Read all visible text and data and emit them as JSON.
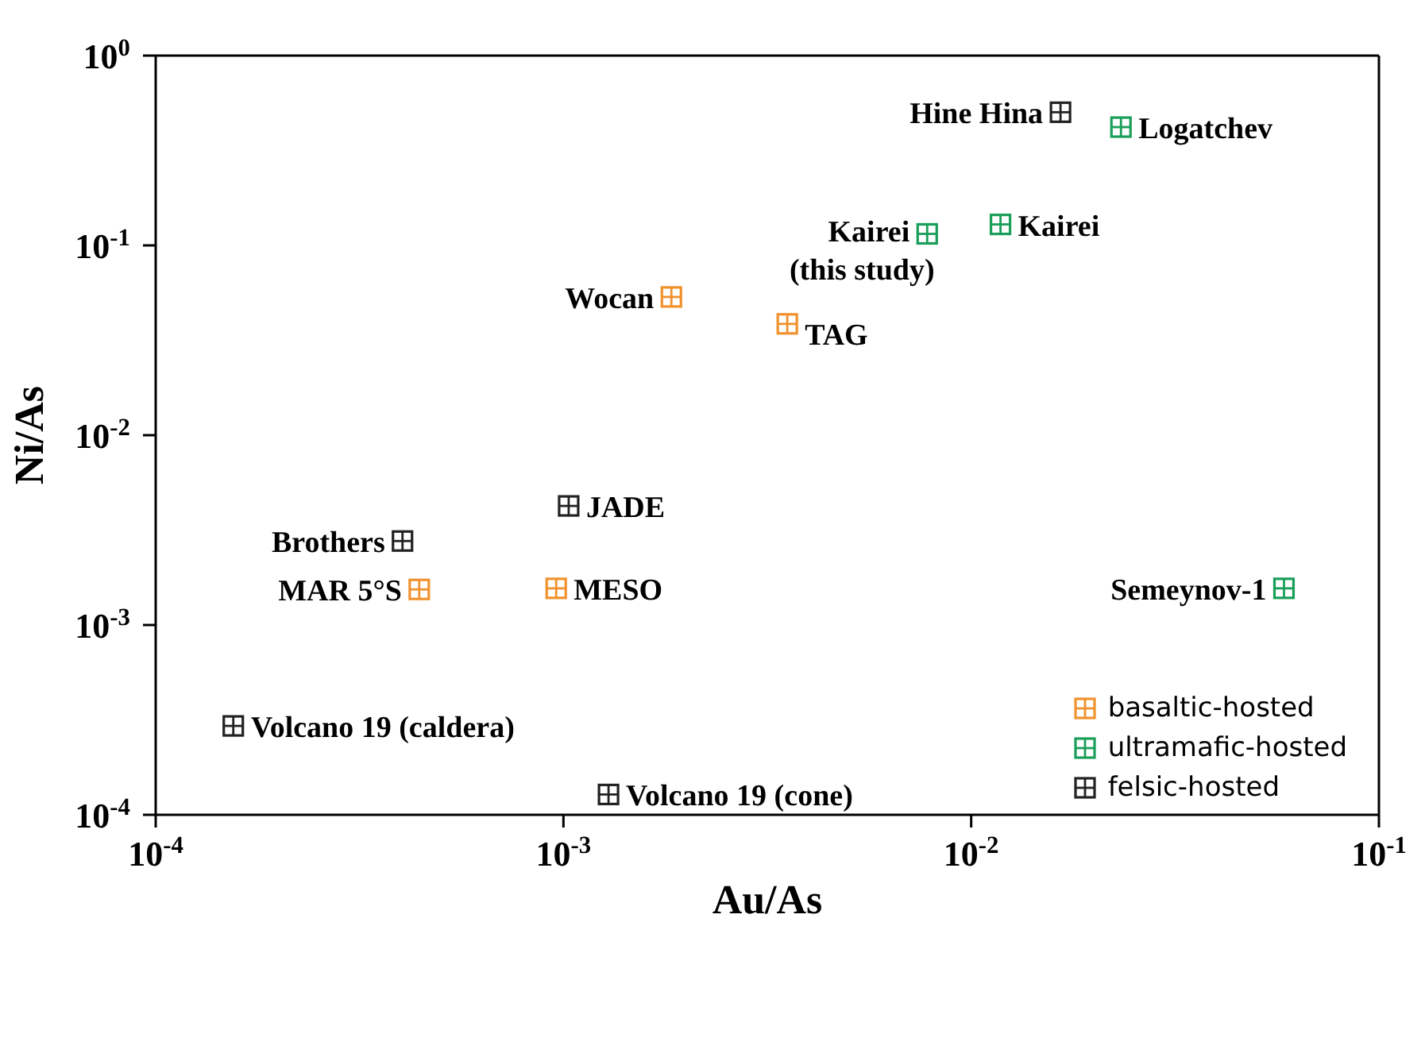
{
  "chart_data": {
    "type": "scatter",
    "xlabel": "Au/As",
    "ylabel": "Ni/As",
    "log": "xy",
    "grid": false,
    "legend": "bottom right",
    "marker": "square",
    "xlim": [
      0.0001,
      0.1
    ],
    "ylim": [
      0.0001,
      1
    ],
    "xticks": [
      {
        "value": 0.0001,
        "label": "10$^{-4}$"
      },
      {
        "value": 0.001,
        "label": "10$^{-3}$"
      },
      {
        "value": 0.01,
        "label": "10$^{-2}$"
      },
      {
        "value": 0.1,
        "label": "10$^{-1}$"
      }
    ],
    "yticks": [
      {
        "value": 0.0001,
        "label": "10$^{-4}$"
      },
      {
        "value": 0.001,
        "label": "10$^{-3}$"
      },
      {
        "value": 0.01,
        "label": "10$^{-2}$"
      },
      {
        "value": 0.1,
        "label": "10$^{-1}$"
      },
      {
        "value": 1,
        "label": "10$^{0}$"
      }
    ],
    "series": [
      {
        "name": "basaltic-hosted",
        "color": "#f0922e",
        "x": [
          0.00184,
          0.00354,
          0.000443,
          0.00096
        ],
        "values": [
          0.0535,
          0.0386,
          0.00154,
          0.00156
        ]
      },
      {
        "name": "ultramafic-hosted",
        "color": "#1a9e5a",
        "x": [
          0.0233,
          0.0078,
          0.0118,
          0.0585
        ],
        "values": [
          0.42,
          0.115,
          0.129,
          0.00156
        ]
      },
      {
        "name": "felsic-hosted",
        "color": "#222222",
        "x": [
          0.01656,
          0.00103,
          0.000403,
          0.000155,
          0.00129
        ],
        "values": [
          0.503,
          0.00424,
          0.00277,
          0.000294,
          0.000128
        ]
      }
    ],
    "annotations": [
      {
        "text": "Hine Hina",
        "x": 0.01656,
        "y": 0.503
      },
      {
        "text": "Logatchev",
        "x": 0.0233,
        "y": 0.42
      },
      {
        "text": "Kairei\n(this study)",
        "x": 0.0078,
        "y": 0.115
      },
      {
        "text": "Kairei",
        "x": 0.0118,
        "y": 0.129
      },
      {
        "text": "Wocan",
        "x": 0.00184,
        "y": 0.0535
      },
      {
        "text": "TAG",
        "x": 0.00354,
        "y": 0.0386
      },
      {
        "text": "JADE",
        "x": 0.00103,
        "y": 0.00424
      },
      {
        "text": "Brothers",
        "x": 0.000403,
        "y": 0.00277
      },
      {
        "text": "MAR 5°S",
        "x": 0.000443,
        "y": 0.00154
      },
      {
        "text": "MESO",
        "x": 0.00096,
        "y": 0.00156
      },
      {
        "text": "Semeynov-1",
        "x": 0.0585,
        "y": 0.00156
      },
      {
        "text": "Volcano 19 (caldera)",
        "x": 0.000155,
        "y": 0.000294
      },
      {
        "text": "Volcano 19 (cone)",
        "x": 0.00129,
        "y": 0.000128
      }
    ]
  }
}
